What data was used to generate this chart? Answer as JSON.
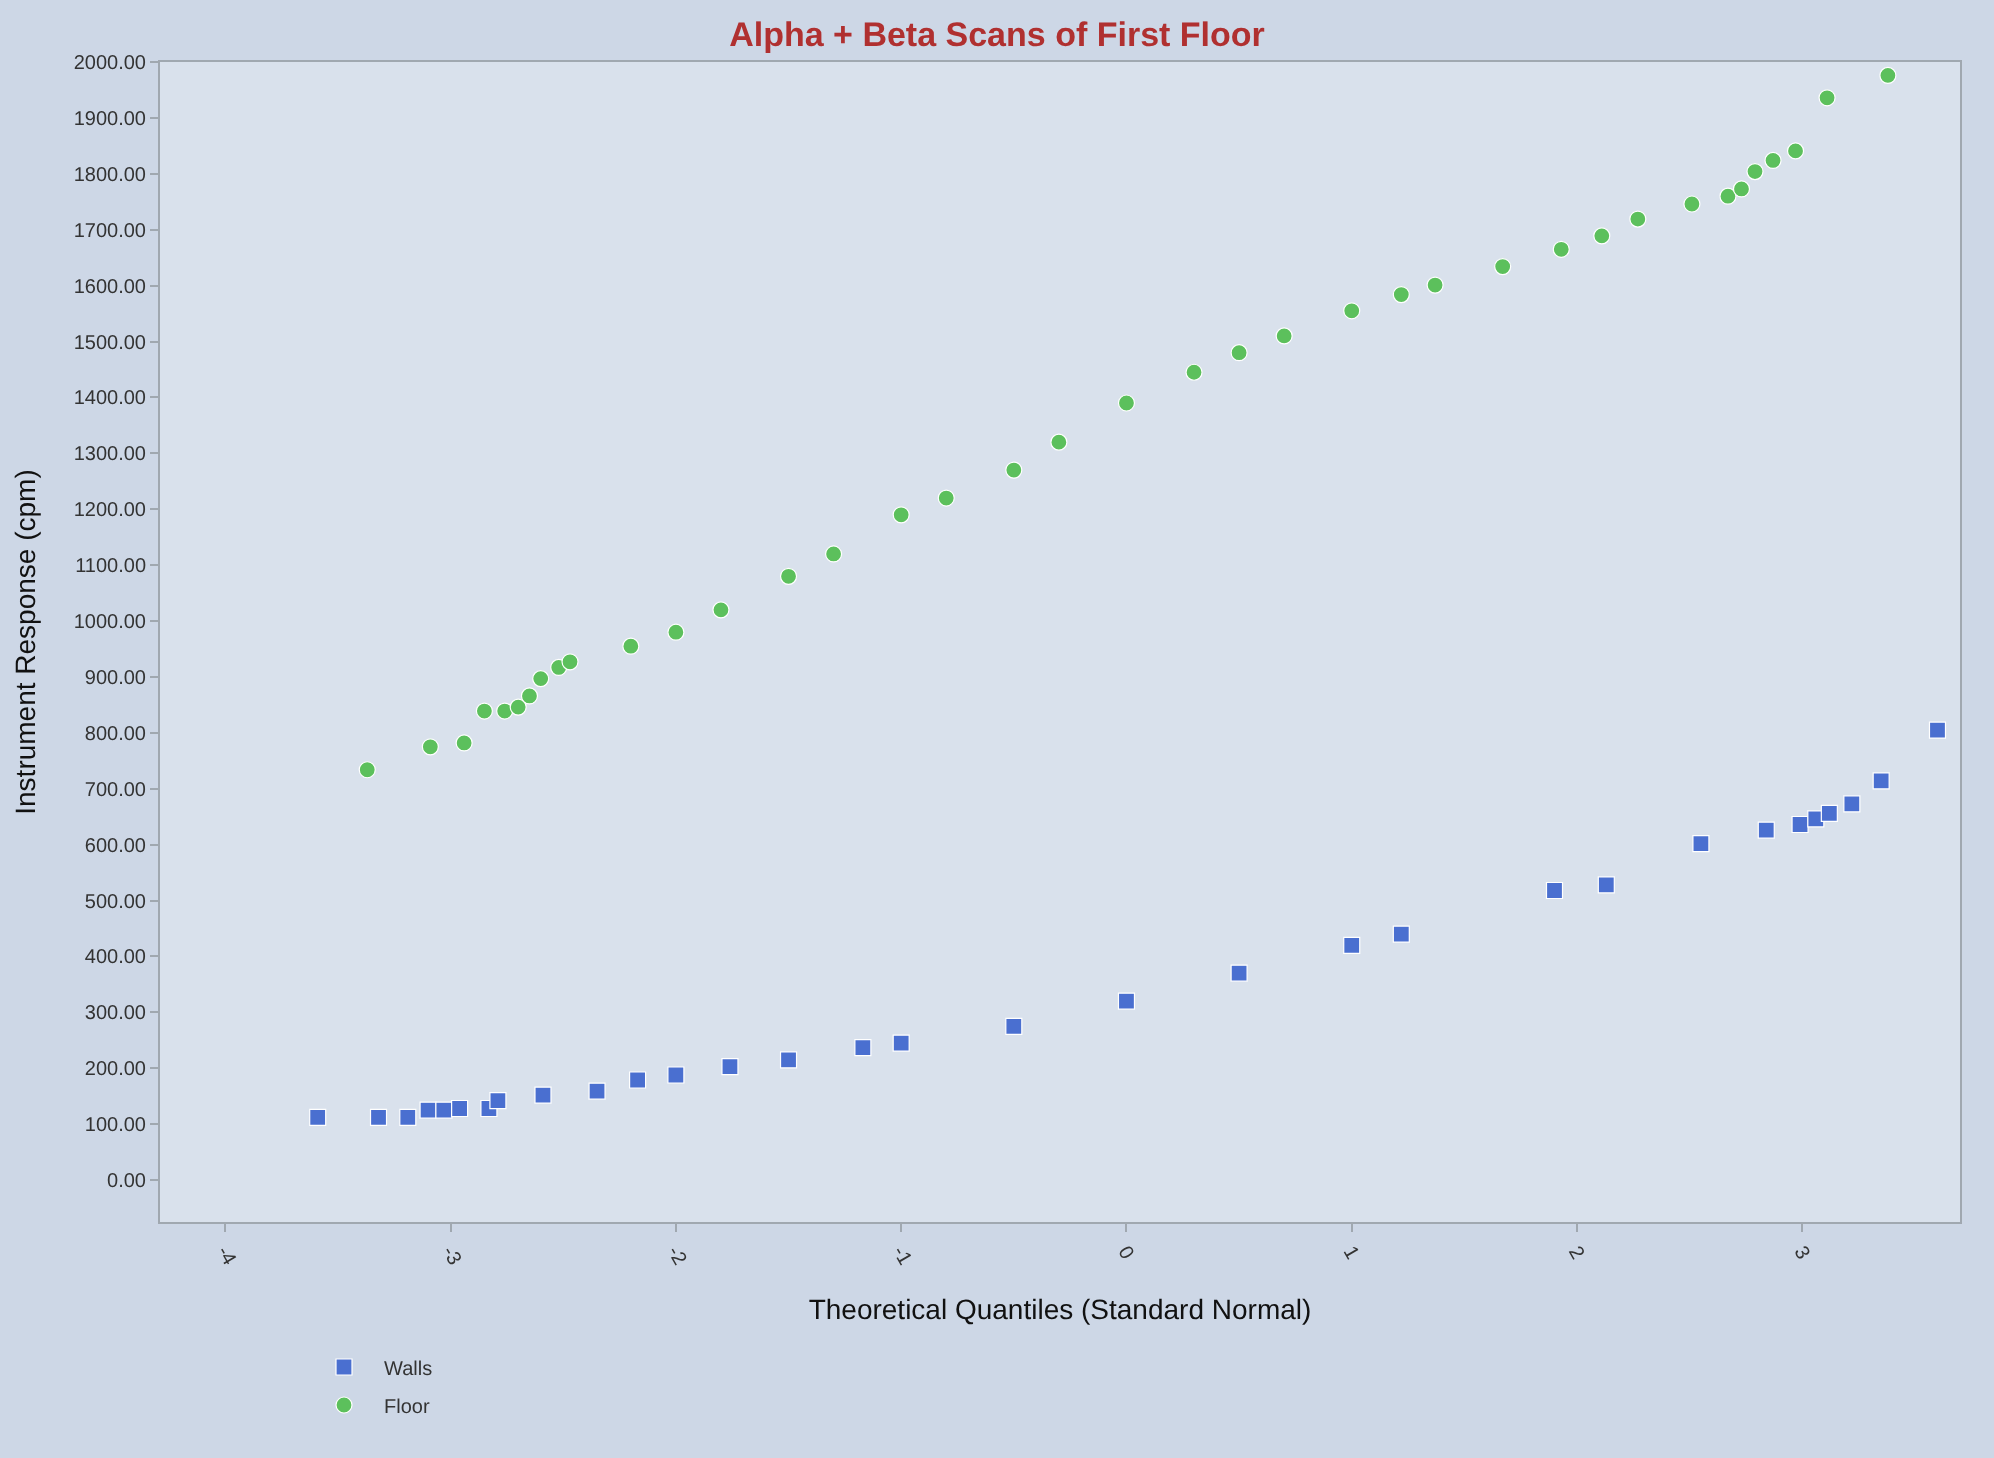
{
  "chart_data": {
    "type": "scatter",
    "title": "Alpha + Beta Scans of First Floor",
    "xlabel": "Theoretical Quantiles (Standard Normal)",
    "ylabel": "Instrument Response (cpm)",
    "xlim": [
      -4.29,
      3.7
    ],
    "xticks": [
      -4,
      -3,
      -2,
      -1,
      0,
      1,
      2,
      3
    ],
    "ylim": [
      -75,
      2000
    ],
    "yticks": [
      {
        "value": 0,
        "label": "0.00"
      },
      {
        "value": 100,
        "label": "100.00"
      },
      {
        "value": 200,
        "label": "200.00"
      },
      {
        "value": 300,
        "label": "300.00"
      },
      {
        "value": 400,
        "label": "400.00"
      },
      {
        "value": 500,
        "label": "500.00"
      },
      {
        "value": 600,
        "label": "600.00"
      },
      {
        "value": 700,
        "label": "700.00"
      },
      {
        "value": 800,
        "label": "800.00"
      },
      {
        "value": 900,
        "label": "900.00"
      },
      {
        "value": 1000,
        "label": "1000.00"
      },
      {
        "value": 1100,
        "label": "1100.00"
      },
      {
        "value": 1200,
        "label": "1200.00"
      },
      {
        "value": 1300,
        "label": "1300.00"
      },
      {
        "value": 1400,
        "label": "1400.00"
      },
      {
        "value": 1500,
        "label": "1500.00"
      },
      {
        "value": 1600,
        "label": "1600.00"
      },
      {
        "value": 1700,
        "label": "1700.00"
      },
      {
        "value": 1800,
        "label": "1800.00"
      },
      {
        "value": 1900,
        "label": "1900.00"
      },
      {
        "value": 2000,
        "label": "2000.00"
      }
    ],
    "grid": false,
    "legend": "bottom",
    "series": [
      {
        "name": "Walls",
        "color": "#4a6fd0",
        "marker": "square",
        "x": [
          -3.59,
          -3.32,
          -3.19,
          -3.1,
          -3.03,
          -2.96,
          -2.83,
          -2.79,
          -2.59,
          -2.35,
          -2.17,
          -2.0,
          -1.76,
          -1.5,
          -1.17,
          -1.0,
          -0.5,
          0.0,
          0.5,
          1.0,
          1.22,
          1.9,
          2.13,
          2.55,
          2.84,
          2.99,
          3.06,
          3.12,
          3.22,
          3.35,
          3.6
        ],
        "values": [
          112,
          112,
          112,
          125,
          125,
          128,
          128,
          142,
          152,
          159,
          179,
          188,
          203,
          215,
          237,
          245,
          275,
          320,
          370,
          420,
          440,
          518,
          528,
          602,
          626,
          636,
          646,
          656,
          673,
          714,
          805
        ]
      },
      {
        "name": "Floor",
        "color": "#5cc05c",
        "marker": "circle",
        "x": [
          -3.37,
          -3.09,
          -2.94,
          -2.85,
          -2.76,
          -2.7,
          -2.65,
          -2.6,
          -2.52,
          -2.47,
          -2.2,
          -2.0,
          -1.8,
          -1.5,
          -1.3,
          -1.0,
          -0.8,
          -0.5,
          -0.3,
          0.0,
          0.3,
          0.5,
          0.7,
          1.0,
          1.22,
          1.37,
          1.67,
          1.93,
          2.11,
          2.27,
          2.51,
          2.67,
          2.73,
          2.79,
          2.87,
          2.97,
          3.11,
          3.38
        ],
        "values": [
          734,
          775,
          782,
          839,
          839,
          846,
          866,
          897,
          917,
          927,
          955,
          980,
          1020,
          1080,
          1120,
          1190,
          1220,
          1270,
          1320,
          1390,
          1445,
          1480,
          1510,
          1555,
          1584,
          1601,
          1634,
          1665,
          1689,
          1719,
          1746,
          1760,
          1773,
          1804,
          1824,
          1841,
          1936,
          1976
        ]
      }
    ]
  }
}
